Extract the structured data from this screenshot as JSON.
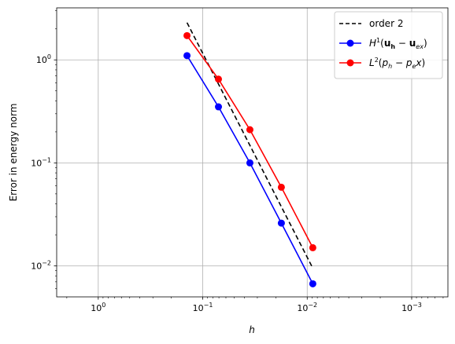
{
  "chart_data": {
    "type": "line",
    "title": "",
    "xlabel": "h",
    "ylabel": "Error in energy norm",
    "xscale": "log",
    "yscale": "log",
    "x_inverted": true,
    "xlim": [
      2.5,
      0.00045
    ],
    "ylim": [
      0.005,
      3.2
    ],
    "grid": true,
    "legend": "top-right",
    "x_ticks": [
      {
        "value": 1,
        "mant": "10",
        "exp": "0"
      },
      {
        "value": 0.1,
        "mant": "10",
        "exp": "−1"
      },
      {
        "value": 0.01,
        "mant": "10",
        "exp": "−2"
      },
      {
        "value": 0.001,
        "mant": "10",
        "exp": "−3"
      }
    ],
    "y_ticks": [
      {
        "value": 0.01,
        "mant": "10",
        "exp": "−2"
      },
      {
        "value": 0.1,
        "mant": "10",
        "exp": "−1"
      },
      {
        "value": 1,
        "mant": "10",
        "exp": "0"
      }
    ],
    "series": [
      {
        "name": "order 2",
        "color": "#000000",
        "style": "dashed",
        "marker": "none",
        "x": [
          0.1414,
          0.00884
        ],
        "y": [
          2.3,
          0.0095
        ]
      },
      {
        "name": "H^1(u_h − u_ex)",
        "color": "#0000ff",
        "style": "solid",
        "marker": "circle",
        "x": [
          0.1414,
          0.0707,
          0.03536,
          0.01768,
          0.00884
        ],
        "y": [
          1.1,
          0.35,
          0.1,
          0.026,
          0.0067
        ]
      },
      {
        "name": "L^2(p_h − p_ex)",
        "color": "#ff0000",
        "style": "solid",
        "marker": "circle",
        "x": [
          0.1414,
          0.0707,
          0.03536,
          0.01768,
          0.00884
        ],
        "y": [
          1.72,
          0.65,
          0.21,
          0.058,
          0.015
        ]
      }
    ]
  },
  "legend": {
    "items": [
      {
        "text": "order 2"
      },
      {
        "pre": "H",
        "sup": "1",
        "open": "(",
        "a": "u",
        "asub": "h",
        "minus": " − ",
        "b": "u",
        "bsub": "ex",
        "close": ")"
      },
      {
        "pre": "L",
        "sup": "2",
        "open": "(",
        "a": "p",
        "asub": "h",
        "minus": " − ",
        "b": "p",
        "bsub": "e",
        "tail": "x",
        "close": ")"
      }
    ]
  }
}
